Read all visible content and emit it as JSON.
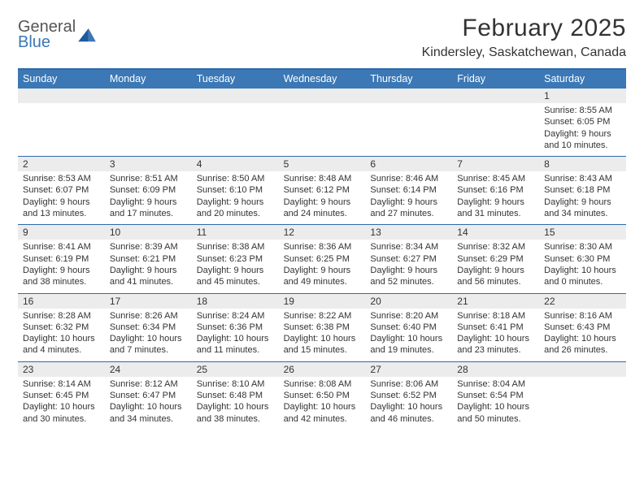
{
  "brand": {
    "top": "General",
    "bottom": "Blue"
  },
  "title": "February 2025",
  "location": "Kindersley, Saskatchewan, Canada",
  "colors": {
    "header_bg": "#3b78b5",
    "header_text": "#ffffff",
    "rule": "#2f6aa8",
    "daynum_bg": "#ececec",
    "page_bg": "#ffffff",
    "text": "#333333",
    "brand_gray": "#555555",
    "brand_blue": "#3b78b5"
  },
  "day_labels": [
    "Sunday",
    "Monday",
    "Tuesday",
    "Wednesday",
    "Thursday",
    "Friday",
    "Saturday"
  ],
  "weeks": [
    {
      "nums": [
        "",
        "",
        "",
        "",
        "",
        "",
        "1"
      ],
      "cells": [
        {
          "sunrise": "",
          "sunset": "",
          "daylight": ""
        },
        {
          "sunrise": "",
          "sunset": "",
          "daylight": ""
        },
        {
          "sunrise": "",
          "sunset": "",
          "daylight": ""
        },
        {
          "sunrise": "",
          "sunset": "",
          "daylight": ""
        },
        {
          "sunrise": "",
          "sunset": "",
          "daylight": ""
        },
        {
          "sunrise": "",
          "sunset": "",
          "daylight": ""
        },
        {
          "sunrise": "Sunrise: 8:55 AM",
          "sunset": "Sunset: 6:05 PM",
          "daylight": "Daylight: 9 hours and 10 minutes."
        }
      ]
    },
    {
      "nums": [
        "2",
        "3",
        "4",
        "5",
        "6",
        "7",
        "8"
      ],
      "cells": [
        {
          "sunrise": "Sunrise: 8:53 AM",
          "sunset": "Sunset: 6:07 PM",
          "daylight": "Daylight: 9 hours and 13 minutes."
        },
        {
          "sunrise": "Sunrise: 8:51 AM",
          "sunset": "Sunset: 6:09 PM",
          "daylight": "Daylight: 9 hours and 17 minutes."
        },
        {
          "sunrise": "Sunrise: 8:50 AM",
          "sunset": "Sunset: 6:10 PM",
          "daylight": "Daylight: 9 hours and 20 minutes."
        },
        {
          "sunrise": "Sunrise: 8:48 AM",
          "sunset": "Sunset: 6:12 PM",
          "daylight": "Daylight: 9 hours and 24 minutes."
        },
        {
          "sunrise": "Sunrise: 8:46 AM",
          "sunset": "Sunset: 6:14 PM",
          "daylight": "Daylight: 9 hours and 27 minutes."
        },
        {
          "sunrise": "Sunrise: 8:45 AM",
          "sunset": "Sunset: 6:16 PM",
          "daylight": "Daylight: 9 hours and 31 minutes."
        },
        {
          "sunrise": "Sunrise: 8:43 AM",
          "sunset": "Sunset: 6:18 PM",
          "daylight": "Daylight: 9 hours and 34 minutes."
        }
      ]
    },
    {
      "nums": [
        "9",
        "10",
        "11",
        "12",
        "13",
        "14",
        "15"
      ],
      "cells": [
        {
          "sunrise": "Sunrise: 8:41 AM",
          "sunset": "Sunset: 6:19 PM",
          "daylight": "Daylight: 9 hours and 38 minutes."
        },
        {
          "sunrise": "Sunrise: 8:39 AM",
          "sunset": "Sunset: 6:21 PM",
          "daylight": "Daylight: 9 hours and 41 minutes."
        },
        {
          "sunrise": "Sunrise: 8:38 AM",
          "sunset": "Sunset: 6:23 PM",
          "daylight": "Daylight: 9 hours and 45 minutes."
        },
        {
          "sunrise": "Sunrise: 8:36 AM",
          "sunset": "Sunset: 6:25 PM",
          "daylight": "Daylight: 9 hours and 49 minutes."
        },
        {
          "sunrise": "Sunrise: 8:34 AM",
          "sunset": "Sunset: 6:27 PM",
          "daylight": "Daylight: 9 hours and 52 minutes."
        },
        {
          "sunrise": "Sunrise: 8:32 AM",
          "sunset": "Sunset: 6:29 PM",
          "daylight": "Daylight: 9 hours and 56 minutes."
        },
        {
          "sunrise": "Sunrise: 8:30 AM",
          "sunset": "Sunset: 6:30 PM",
          "daylight": "Daylight: 10 hours and 0 minutes."
        }
      ]
    },
    {
      "nums": [
        "16",
        "17",
        "18",
        "19",
        "20",
        "21",
        "22"
      ],
      "cells": [
        {
          "sunrise": "Sunrise: 8:28 AM",
          "sunset": "Sunset: 6:32 PM",
          "daylight": "Daylight: 10 hours and 4 minutes."
        },
        {
          "sunrise": "Sunrise: 8:26 AM",
          "sunset": "Sunset: 6:34 PM",
          "daylight": "Daylight: 10 hours and 7 minutes."
        },
        {
          "sunrise": "Sunrise: 8:24 AM",
          "sunset": "Sunset: 6:36 PM",
          "daylight": "Daylight: 10 hours and 11 minutes."
        },
        {
          "sunrise": "Sunrise: 8:22 AM",
          "sunset": "Sunset: 6:38 PM",
          "daylight": "Daylight: 10 hours and 15 minutes."
        },
        {
          "sunrise": "Sunrise: 8:20 AM",
          "sunset": "Sunset: 6:40 PM",
          "daylight": "Daylight: 10 hours and 19 minutes."
        },
        {
          "sunrise": "Sunrise: 8:18 AM",
          "sunset": "Sunset: 6:41 PM",
          "daylight": "Daylight: 10 hours and 23 minutes."
        },
        {
          "sunrise": "Sunrise: 8:16 AM",
          "sunset": "Sunset: 6:43 PM",
          "daylight": "Daylight: 10 hours and 26 minutes."
        }
      ]
    },
    {
      "nums": [
        "23",
        "24",
        "25",
        "26",
        "27",
        "28",
        ""
      ],
      "cells": [
        {
          "sunrise": "Sunrise: 8:14 AM",
          "sunset": "Sunset: 6:45 PM",
          "daylight": "Daylight: 10 hours and 30 minutes."
        },
        {
          "sunrise": "Sunrise: 8:12 AM",
          "sunset": "Sunset: 6:47 PM",
          "daylight": "Daylight: 10 hours and 34 minutes."
        },
        {
          "sunrise": "Sunrise: 8:10 AM",
          "sunset": "Sunset: 6:48 PM",
          "daylight": "Daylight: 10 hours and 38 minutes."
        },
        {
          "sunrise": "Sunrise: 8:08 AM",
          "sunset": "Sunset: 6:50 PM",
          "daylight": "Daylight: 10 hours and 42 minutes."
        },
        {
          "sunrise": "Sunrise: 8:06 AM",
          "sunset": "Sunset: 6:52 PM",
          "daylight": "Daylight: 10 hours and 46 minutes."
        },
        {
          "sunrise": "Sunrise: 8:04 AM",
          "sunset": "Sunset: 6:54 PM",
          "daylight": "Daylight: 10 hours and 50 minutes."
        },
        {
          "sunrise": "",
          "sunset": "",
          "daylight": ""
        }
      ]
    }
  ]
}
